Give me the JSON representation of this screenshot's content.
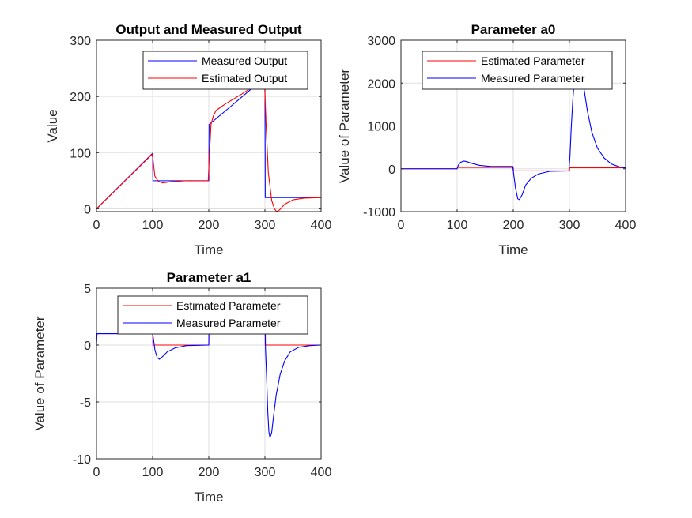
{
  "chart_data": [
    {
      "type": "line",
      "title": "Output and Measured Output",
      "xlabel": "Time",
      "ylabel": "Value",
      "xlim": [
        0,
        400
      ],
      "ylim": [
        -5,
        300
      ],
      "xticks": [
        0,
        100,
        200,
        300,
        400
      ],
      "yticks": [
        0,
        100,
        200,
        300
      ],
      "grid": true,
      "legend_position": "top-right",
      "series": [
        {
          "name": "Measured Output",
          "color": "#0000ff",
          "x": [
            0,
            100,
            100.5,
            200,
            200.5,
            240,
            280,
            300,
            300.5,
            400
          ],
          "y": [
            0,
            99,
            50,
            50,
            150,
            183,
            217,
            233,
            20,
            20
          ]
        },
        {
          "name": "Estimated Output",
          "color": "#ff0000",
          "x": [
            0,
            99,
            101,
            104,
            110,
            118,
            130,
            160,
            199,
            201,
            204,
            208,
            213,
            220,
            230,
            260,
            290,
            299,
            302,
            306,
            312,
            317,
            321,
            326,
            335,
            350,
            370,
            400
          ],
          "y": [
            0,
            97,
            85,
            58,
            49,
            46,
            48,
            50,
            50,
            95,
            150,
            165,
            175,
            180,
            187,
            205,
            225,
            232,
            150,
            65,
            15,
            0,
            -5,
            -2,
            8,
            16,
            19,
            20
          ]
        }
      ]
    },
    {
      "type": "line",
      "title": "Parameter a0",
      "xlabel": "Time",
      "ylabel": "Value of Parameter",
      "xlim": [
        0,
        400
      ],
      "ylim": [
        -1000,
        3000
      ],
      "xticks": [
        0,
        100,
        200,
        300,
        400
      ],
      "yticks": [
        -1000,
        0,
        1000,
        2000,
        3000
      ],
      "grid": true,
      "legend_position": "top-right",
      "series": [
        {
          "name": "Estimated Parameter",
          "color": "#ff0000",
          "x": [
            0,
            100,
            100.5,
            200,
            200.5,
            300,
            300.5,
            400
          ],
          "y": [
            0,
            0,
            30,
            30,
            -50,
            -50,
            25,
            25
          ]
        },
        {
          "name": "Measured Parameter",
          "color": "#0000ff",
          "x": [
            0,
            100,
            102,
            106,
            112,
            118,
            125,
            140,
            160,
            199,
            201,
            204,
            208,
            211,
            216,
            222,
            232,
            245,
            265,
            299,
            301,
            303,
            306,
            310,
            315,
            320,
            325,
            332,
            340,
            350,
            362,
            375,
            390,
            400
          ],
          "y": [
            0,
            0,
            80,
            150,
            180,
            165,
            130,
            80,
            55,
            55,
            -150,
            -450,
            -700,
            -720,
            -600,
            -380,
            -220,
            -120,
            -60,
            -50,
            300,
            900,
            1600,
            2300,
            2650,
            2450,
            1950,
            1350,
            850,
            480,
            250,
            110,
            40,
            20
          ]
        }
      ]
    },
    {
      "type": "line",
      "title": "Parameter a1",
      "xlabel": "Time",
      "ylabel": "Value of Parameter",
      "xlim": [
        0,
        400
      ],
      "ylim": [
        -10,
        5
      ],
      "xticks": [
        0,
        100,
        200,
        300,
        400
      ],
      "yticks": [
        -10,
        -5,
        0,
        5
      ],
      "grid": true,
      "legend_position": "top-right",
      "series": [
        {
          "name": "Estimated Parameter",
          "color": "#ff0000",
          "x": [
            0,
            100,
            100.5,
            200,
            200.5,
            300,
            300.5,
            400
          ],
          "y": [
            1,
            1,
            0,
            0,
            4,
            4,
            0,
            0
          ]
        },
        {
          "name": "Measured Parameter",
          "color": "#0000ff",
          "x": [
            0,
            1,
            100,
            101,
            104,
            108,
            112,
            118,
            126,
            140,
            160,
            199,
            200,
            201,
            299,
            300,
            301,
            303,
            305,
            307,
            309,
            312,
            315,
            320,
            327,
            335,
            345,
            360,
            380,
            400
          ],
          "y": [
            0,
            1,
            1,
            0.7,
            -0.4,
            -1.1,
            -1.25,
            -1.0,
            -0.6,
            -0.25,
            -0.05,
            0,
            0,
            4,
            4,
            4,
            -0.3,
            -2.8,
            -5.8,
            -7.6,
            -8.15,
            -7.7,
            -6.4,
            -4.4,
            -2.6,
            -1.4,
            -0.6,
            -0.2,
            -0.05,
            0
          ]
        }
      ]
    }
  ]
}
